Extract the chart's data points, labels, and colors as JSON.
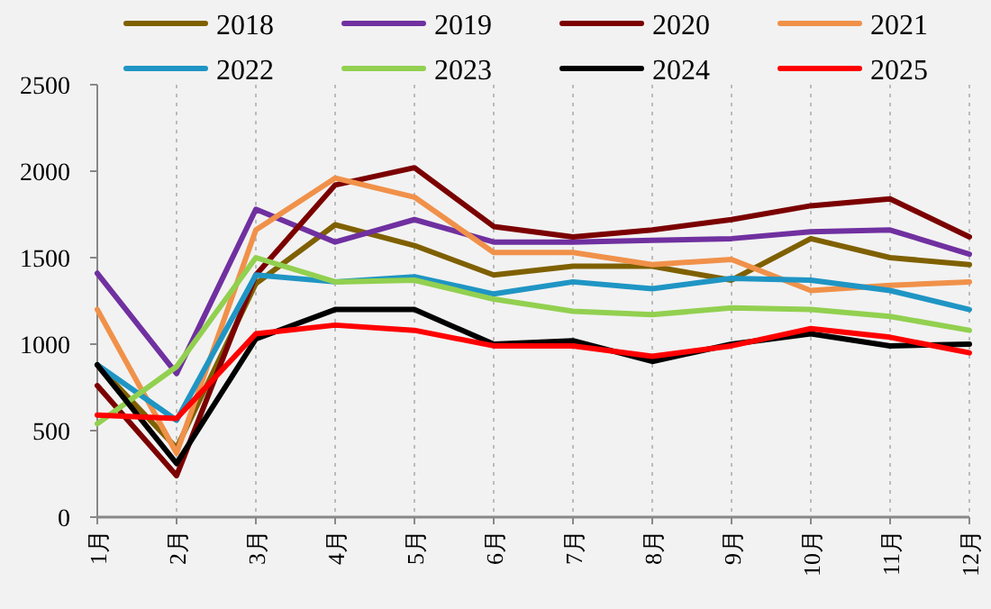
{
  "chart_data": {
    "type": "line",
    "categories": [
      "1月",
      "2月",
      "3月",
      "4月",
      "5月",
      "6月",
      "7月",
      "8月",
      "9月",
      "10月",
      "11月",
      "12月"
    ],
    "series": [
      {
        "name": "2018",
        "color": "#7f6000",
        "values": [
          880,
          400,
          1350,
          1690,
          1570,
          1400,
          1450,
          1450,
          1370,
          1610,
          1500,
          1460
        ]
      },
      {
        "name": "2019",
        "color": "#7030a0",
        "values": [
          1410,
          830,
          1780,
          1590,
          1720,
          1590,
          1590,
          1600,
          1610,
          1650,
          1660,
          1520
        ]
      },
      {
        "name": "2020",
        "color": "#7b0000",
        "values": [
          760,
          240,
          1400,
          1920,
          2020,
          1680,
          1620,
          1660,
          1720,
          1800,
          1840,
          1620
        ]
      },
      {
        "name": "2021",
        "color": "#f0914a",
        "values": [
          1200,
          370,
          1660,
          1960,
          1850,
          1530,
          1530,
          1460,
          1490,
          1310,
          1340,
          1360
        ]
      },
      {
        "name": "2022",
        "color": "#1f95c4",
        "values": [
          880,
          560,
          1400,
          1360,
          1390,
          1290,
          1360,
          1320,
          1380,
          1370,
          1310,
          1200
        ]
      },
      {
        "name": "2023",
        "color": "#92d050",
        "values": [
          540,
          870,
          1500,
          1360,
          1370,
          1260,
          1190,
          1170,
          1210,
          1200,
          1160,
          1080
        ]
      },
      {
        "name": "2024",
        "color": "#000000",
        "values": [
          880,
          310,
          1030,
          1200,
          1200,
          1000,
          1020,
          900,
          1000,
          1060,
          990,
          1000
        ]
      },
      {
        "name": "2025",
        "color": "#ff0000",
        "values": [
          590,
          570,
          1060,
          1110,
          1080,
          990,
          990,
          930,
          990,
          1090,
          1040,
          950
        ]
      }
    ],
    "ylim": [
      0,
      2500
    ],
    "yticks": [
      0,
      500,
      1000,
      1500,
      2000,
      2500
    ],
    "grid": "x",
    "legend": "top"
  }
}
